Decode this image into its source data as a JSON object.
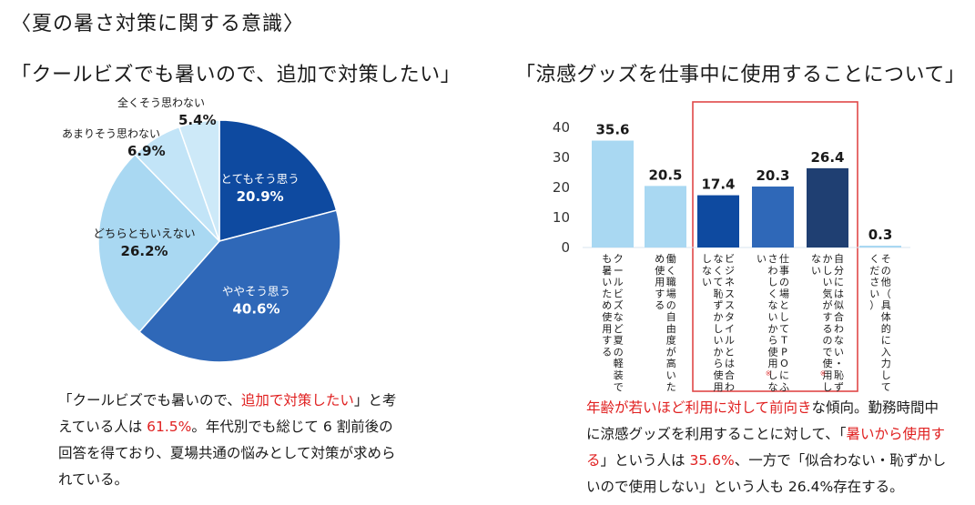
{
  "heading": "〈夏の暑さ対策に関する意識〉",
  "left_title": "「クールビズでも暑いので、追加で対策したい」",
  "right_title": "「涼感グッズを仕事中に使用することについて」",
  "chart_data": [
    {
      "type": "pie",
      "title": "「クールビズでも暑いので、追加で対策したい」",
      "slices": [
        {
          "label": "とてもそう思う",
          "value": 20.9,
          "display": "20.9%",
          "color": "#0e4aa0"
        },
        {
          "label": "ややそう思う",
          "value": 40.6,
          "display": "40.6%",
          "color": "#2f68b8"
        },
        {
          "label": "どちらともいえない",
          "value": 26.2,
          "display": "26.2%",
          "color": "#a9d8f2"
        },
        {
          "label": "あまりそう思わない",
          "value": 6.9,
          "display": "6.9%",
          "color": "#c2e4f7"
        },
        {
          "label": "全くそう思わない",
          "value": 5.4,
          "display": "5.4%",
          "color": "#cde9f8"
        }
      ]
    },
    {
      "type": "bar",
      "title": "「涼感グッズを仕事中に使用することについて」",
      "ylim": [
        0,
        40
      ],
      "yticks": [
        "0",
        "10",
        "20",
        "30",
        "40"
      ],
      "categories": [
        "クールビズなど夏の軽装でも暑いため使用する",
        "働く職場の自由度が高いため使用する",
        "ビジネススタイルとは合わなくて恥ずかしいから使用しない",
        "仕事の場としてTPOにふさわしくないから使用しない",
        "自分には似合わない・恥ずかしい気がするので使用しない",
        "その他（具体的に入力してください）"
      ],
      "values": [
        35.6,
        20.5,
        17.4,
        20.3,
        26.4,
        0.3
      ],
      "value_labels": [
        "35.6",
        "20.5",
        "17.4",
        "20.3",
        "26.4",
        "0.3"
      ],
      "colors": [
        "#a9d8f2",
        "#a9d8f2",
        "#0e4aa0",
        "#2f68b8",
        "#1f3f72",
        "#a9d8f2"
      ],
      "highlight_box_color": "#e04848",
      "asterisk": "※"
    }
  ],
  "left_caption": {
    "p1": "「クールビズでも暑いので、",
    "p2": "追加で対策したい",
    "p3": "」と考えている人は ",
    "p4": "61.5%",
    "p5": "。年代別でも総じて 6 割前後の回答を得ており、夏場共通の悩みとして対策が求められている。"
  },
  "right_caption": {
    "p1": "年齢が若いほど利用に対して前向き",
    "p2": "な傾向。勤務時間中に涼感グッズを利用することに対して、「",
    "p3": "暑いから使用する",
    "p4": "」という人は ",
    "p5": "35.6%",
    "p6": "、一方で「似合わない・恥ずかしいので使用しない」という人も 26.4%存在する。"
  }
}
